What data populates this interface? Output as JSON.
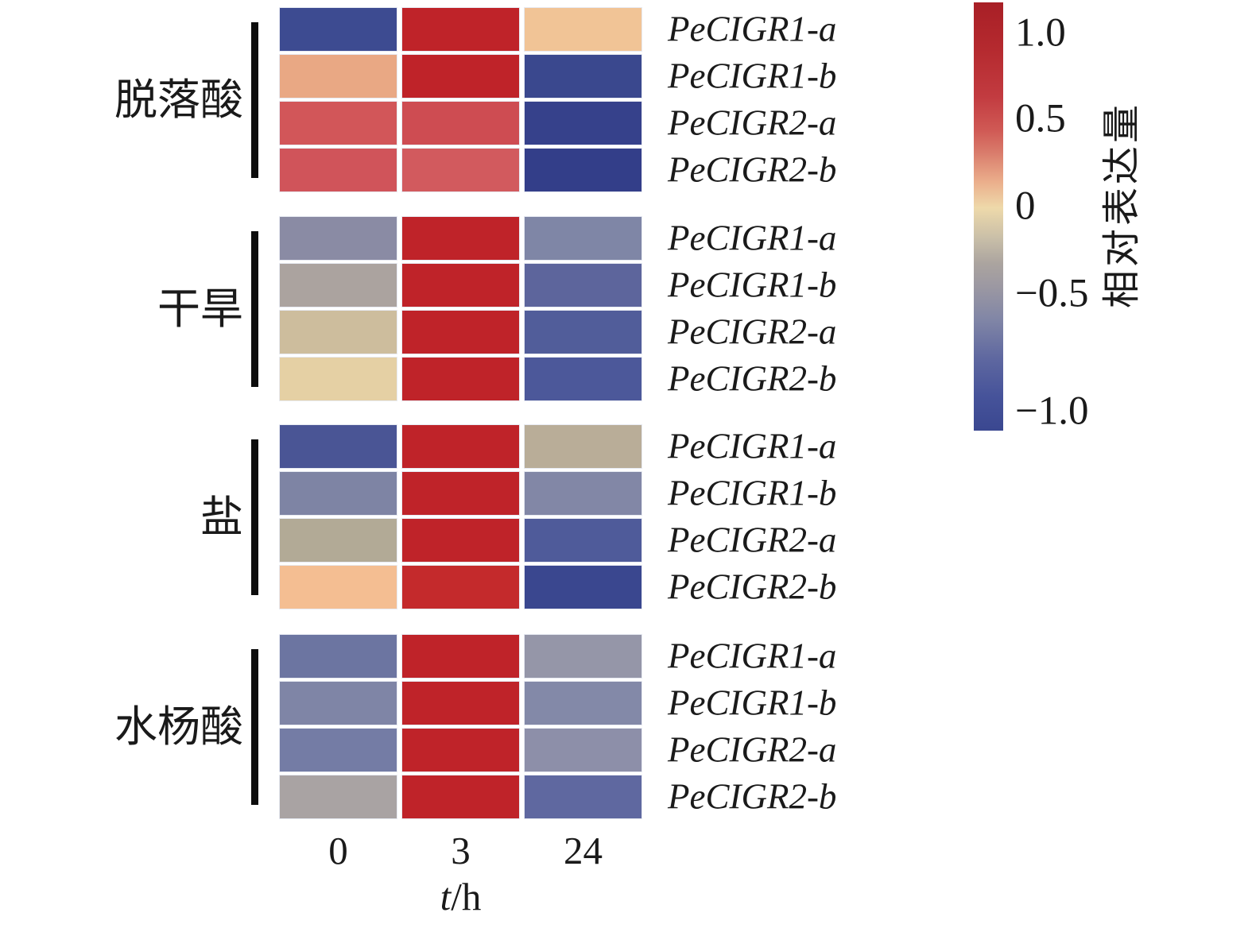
{
  "chart_data": {
    "type": "heatmap",
    "title": "",
    "x_categories": [
      "0",
      "3",
      "24"
    ],
    "xlabel": "t/h",
    "row_genes": [
      "PeCIGR1-a",
      "PeCIGR1-b",
      "PeCIGR2-a",
      "PeCIGR2-b"
    ],
    "value_range": [
      -1.1,
      1.1
    ],
    "colorbar": {
      "label": "相对表达量",
      "ticks": [
        {
          "label": "1.0",
          "value": 1.0,
          "pos": 0.072
        },
        {
          "label": "0.5",
          "value": 0.5,
          "pos": 0.273
        },
        {
          "label": "0",
          "value": 0.0,
          "pos": 0.477
        },
        {
          "label": "−0.5",
          "value": -0.5,
          "pos": 0.681
        },
        {
          "label": "−1.0",
          "value": -1.0,
          "pos": 0.956
        }
      ],
      "gradient_stops": [
        {
          "pos": 0.0,
          "color": "#A81F26"
        },
        {
          "pos": 0.11,
          "color": "#B52A2F"
        },
        {
          "pos": 0.22,
          "color": "#C23B40"
        },
        {
          "pos": 0.3,
          "color": "#D05A55"
        },
        {
          "pos": 0.35,
          "color": "#D97B6B"
        },
        {
          "pos": 0.42,
          "color": "#EBAF8C"
        },
        {
          "pos": 0.48,
          "color": "#EED9AA"
        },
        {
          "pos": 0.55,
          "color": "#C9BFA8"
        },
        {
          "pos": 0.61,
          "color": "#ABA49F"
        },
        {
          "pos": 0.66,
          "color": "#9D99A2"
        },
        {
          "pos": 0.74,
          "color": "#8186A6"
        },
        {
          "pos": 0.83,
          "color": "#5F68A0"
        },
        {
          "pos": 0.92,
          "color": "#46539A"
        },
        {
          "pos": 1.0,
          "color": "#3A4790"
        }
      ]
    },
    "groups": [
      {
        "name": "脱落酸",
        "rows": [
          {
            "gene": "PeCIGR1-a",
            "values": [
              -1.0,
              1.1,
              0.2
            ],
            "colors": [
              "#3D4B91",
              "#BF2329",
              "#F1C496"
            ]
          },
          {
            "gene": "PeCIGR1-b",
            "values": [
              0.25,
              1.1,
              -1.0
            ],
            "colors": [
              "#E9A884",
              "#BF2329",
              "#3A488E"
            ]
          },
          {
            "gene": "PeCIGR2-a",
            "values": [
              0.55,
              0.65,
              -1.05
            ],
            "colors": [
              "#D25659",
              "#CE4C52",
              "#36418B"
            ]
          },
          {
            "gene": "PeCIGR2-b",
            "values": [
              0.6,
              0.55,
              -1.1
            ],
            "colors": [
              "#D0545A",
              "#D25A5E",
              "#333E89"
            ]
          }
        ]
      },
      {
        "name": "干旱",
        "rows": [
          {
            "gene": "PeCIGR1-a",
            "values": [
              -0.45,
              1.1,
              -0.5
            ],
            "colors": [
              "#8A8BA4",
              "#BF2329",
              "#7F86A6"
            ]
          },
          {
            "gene": "PeCIGR1-b",
            "values": [
              -0.3,
              1.1,
              -0.8
            ],
            "colors": [
              "#ABA39F",
              "#BF2329",
              "#5D659C"
            ]
          },
          {
            "gene": "PeCIGR2-a",
            "values": [
              -0.1,
              1.1,
              -0.85
            ],
            "colors": [
              "#CDBD9D",
              "#BF2329",
              "#515D9A"
            ]
          },
          {
            "gene": "PeCIGR2-b",
            "values": [
              0.05,
              1.1,
              -0.9
            ],
            "colors": [
              "#E5D0A4",
              "#BF2329",
              "#4C589A"
            ]
          }
        ]
      },
      {
        "name": "盐",
        "rows": [
          {
            "gene": "PeCIGR1-a",
            "values": [
              -0.9,
              1.1,
              -0.2
            ],
            "colors": [
              "#4A5595",
              "#BF2329",
              "#B9AD98"
            ]
          },
          {
            "gene": "PeCIGR1-b",
            "values": [
              -0.55,
              1.1,
              -0.5
            ],
            "colors": [
              "#7E84A4",
              "#BF2329",
              "#8287A6"
            ]
          },
          {
            "gene": "PeCIGR2-a",
            "values": [
              -0.25,
              1.1,
              -0.85
            ],
            "colors": [
              "#B2AA96",
              "#BF2329",
              "#4F5B9A"
            ]
          },
          {
            "gene": "PeCIGR2-b",
            "values": [
              0.3,
              1.0,
              -1.0
            ],
            "colors": [
              "#F4BE92",
              "#C42A2C",
              "#3A478F"
            ]
          }
        ]
      },
      {
        "name": "水杨酸",
        "rows": [
          {
            "gene": "PeCIGR1-a",
            "values": [
              -0.65,
              1.1,
              -0.4
            ],
            "colors": [
              "#6C75A1",
              "#BF2329",
              "#9596A8"
            ]
          },
          {
            "gene": "PeCIGR1-b",
            "values": [
              -0.55,
              1.1,
              -0.5
            ],
            "colors": [
              "#7F85A6",
              "#BF2329",
              "#8389A8"
            ]
          },
          {
            "gene": "PeCIGR2-a",
            "values": [
              -0.6,
              1.1,
              -0.45
            ],
            "colors": [
              "#747CA5",
              "#BF2329",
              "#8D8FA9"
            ]
          },
          {
            "gene": "PeCIGR2-b",
            "values": [
              -0.35,
              1.1,
              -0.75
            ],
            "colors": [
              "#A9A3A3",
              "#BF2329",
              "#5F68A0"
            ]
          }
        ]
      }
    ]
  }
}
